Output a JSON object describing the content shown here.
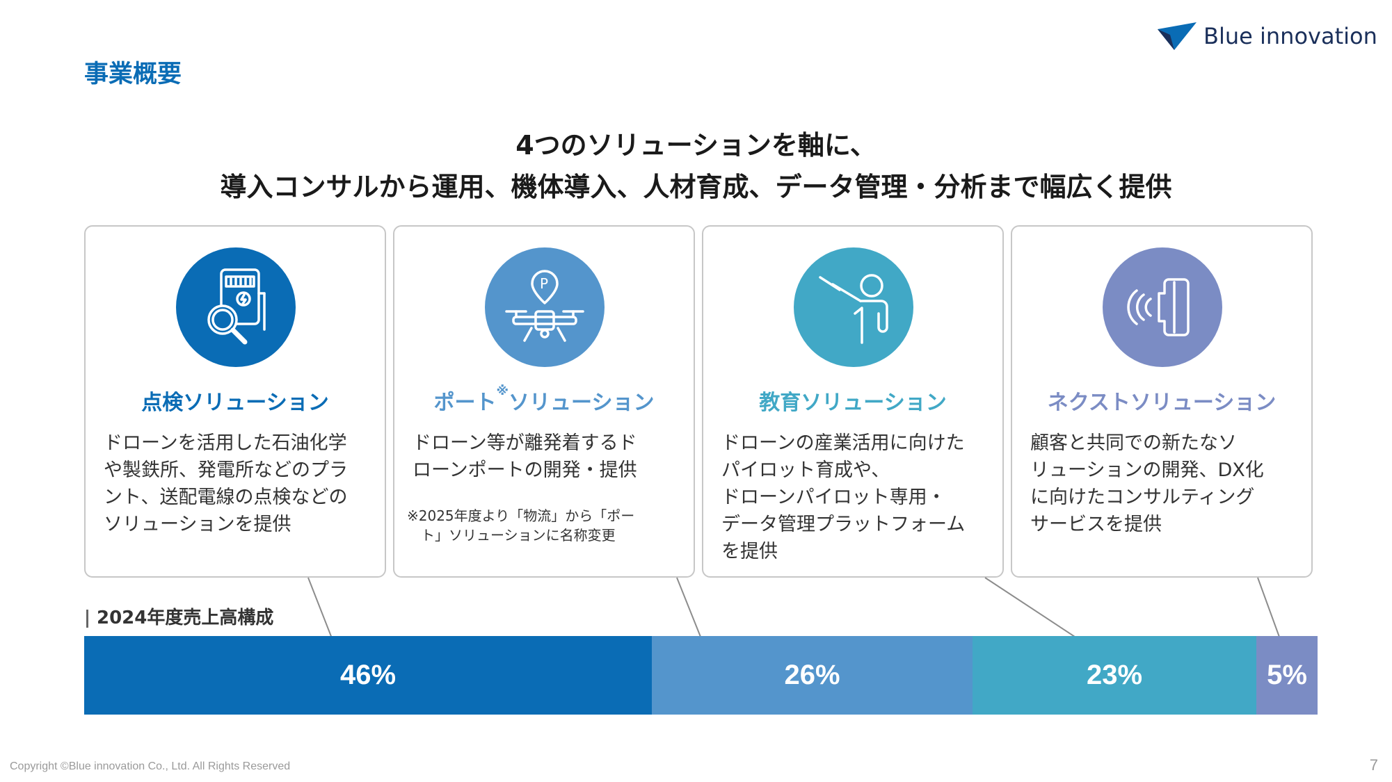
{
  "header": {
    "section_title": "事業概要",
    "logo_text": "Blue innovation"
  },
  "headline": {
    "line1": "4つのソリューションを軸に、",
    "line2": "導入コンサルから運用、機体導入、人材育成、データ管理・分析まで幅広く提供"
  },
  "cards": [
    {
      "title": "点検ソリューション",
      "description": "ドローンを活用した石油化学\nや製鉄所、発電所などのプラ\nント、送配電線の点検などの\nソリューションを提供",
      "icon": "meter-inspection-icon",
      "color": "#0a6cb5"
    },
    {
      "title_part1": "ポート",
      "title_mark": "※",
      "title_part2": "ソリューション",
      "description": "ドローン等が離発着するド\nローンポートの開発・提供",
      "note": "※2025年度より「物流」から「ポー\n　ト」ソリューションに名称変更",
      "icon": "drone-port-icon",
      "color": "#5495cc"
    },
    {
      "title": "教育ソリューション",
      "description": "ドローンの産業活用に向けた\nパイロット育成や、\nドローンパイロット専用・\nデータ管理プラットフォーム\nを提供",
      "icon": "teacher-icon",
      "color": "#41a8c6"
    },
    {
      "title": "ネクストソリューション",
      "description": "顧客と共同での新たなソ\nリューションの開発、DX化\nに向けたコンサルティング\nサービスを提供",
      "icon": "sensor-signal-icon",
      "color": "#7b8cc4"
    }
  ],
  "sales": {
    "label": "2024年度売上高構成",
    "segments": [
      {
        "label": "46%",
        "value": 46,
        "color": "#0a6cb5"
      },
      {
        "label": "26%",
        "value": 26,
        "color": "#5495cc"
      },
      {
        "label": "23%",
        "value": 23,
        "color": "#41a8c6"
      },
      {
        "label": "5%",
        "value": 5,
        "color": "#7b8cc4"
      }
    ]
  },
  "footer": {
    "copyright": "Copyright ©Blue innovation Co., Ltd. All Rights Reserved",
    "page_number": "7"
  }
}
